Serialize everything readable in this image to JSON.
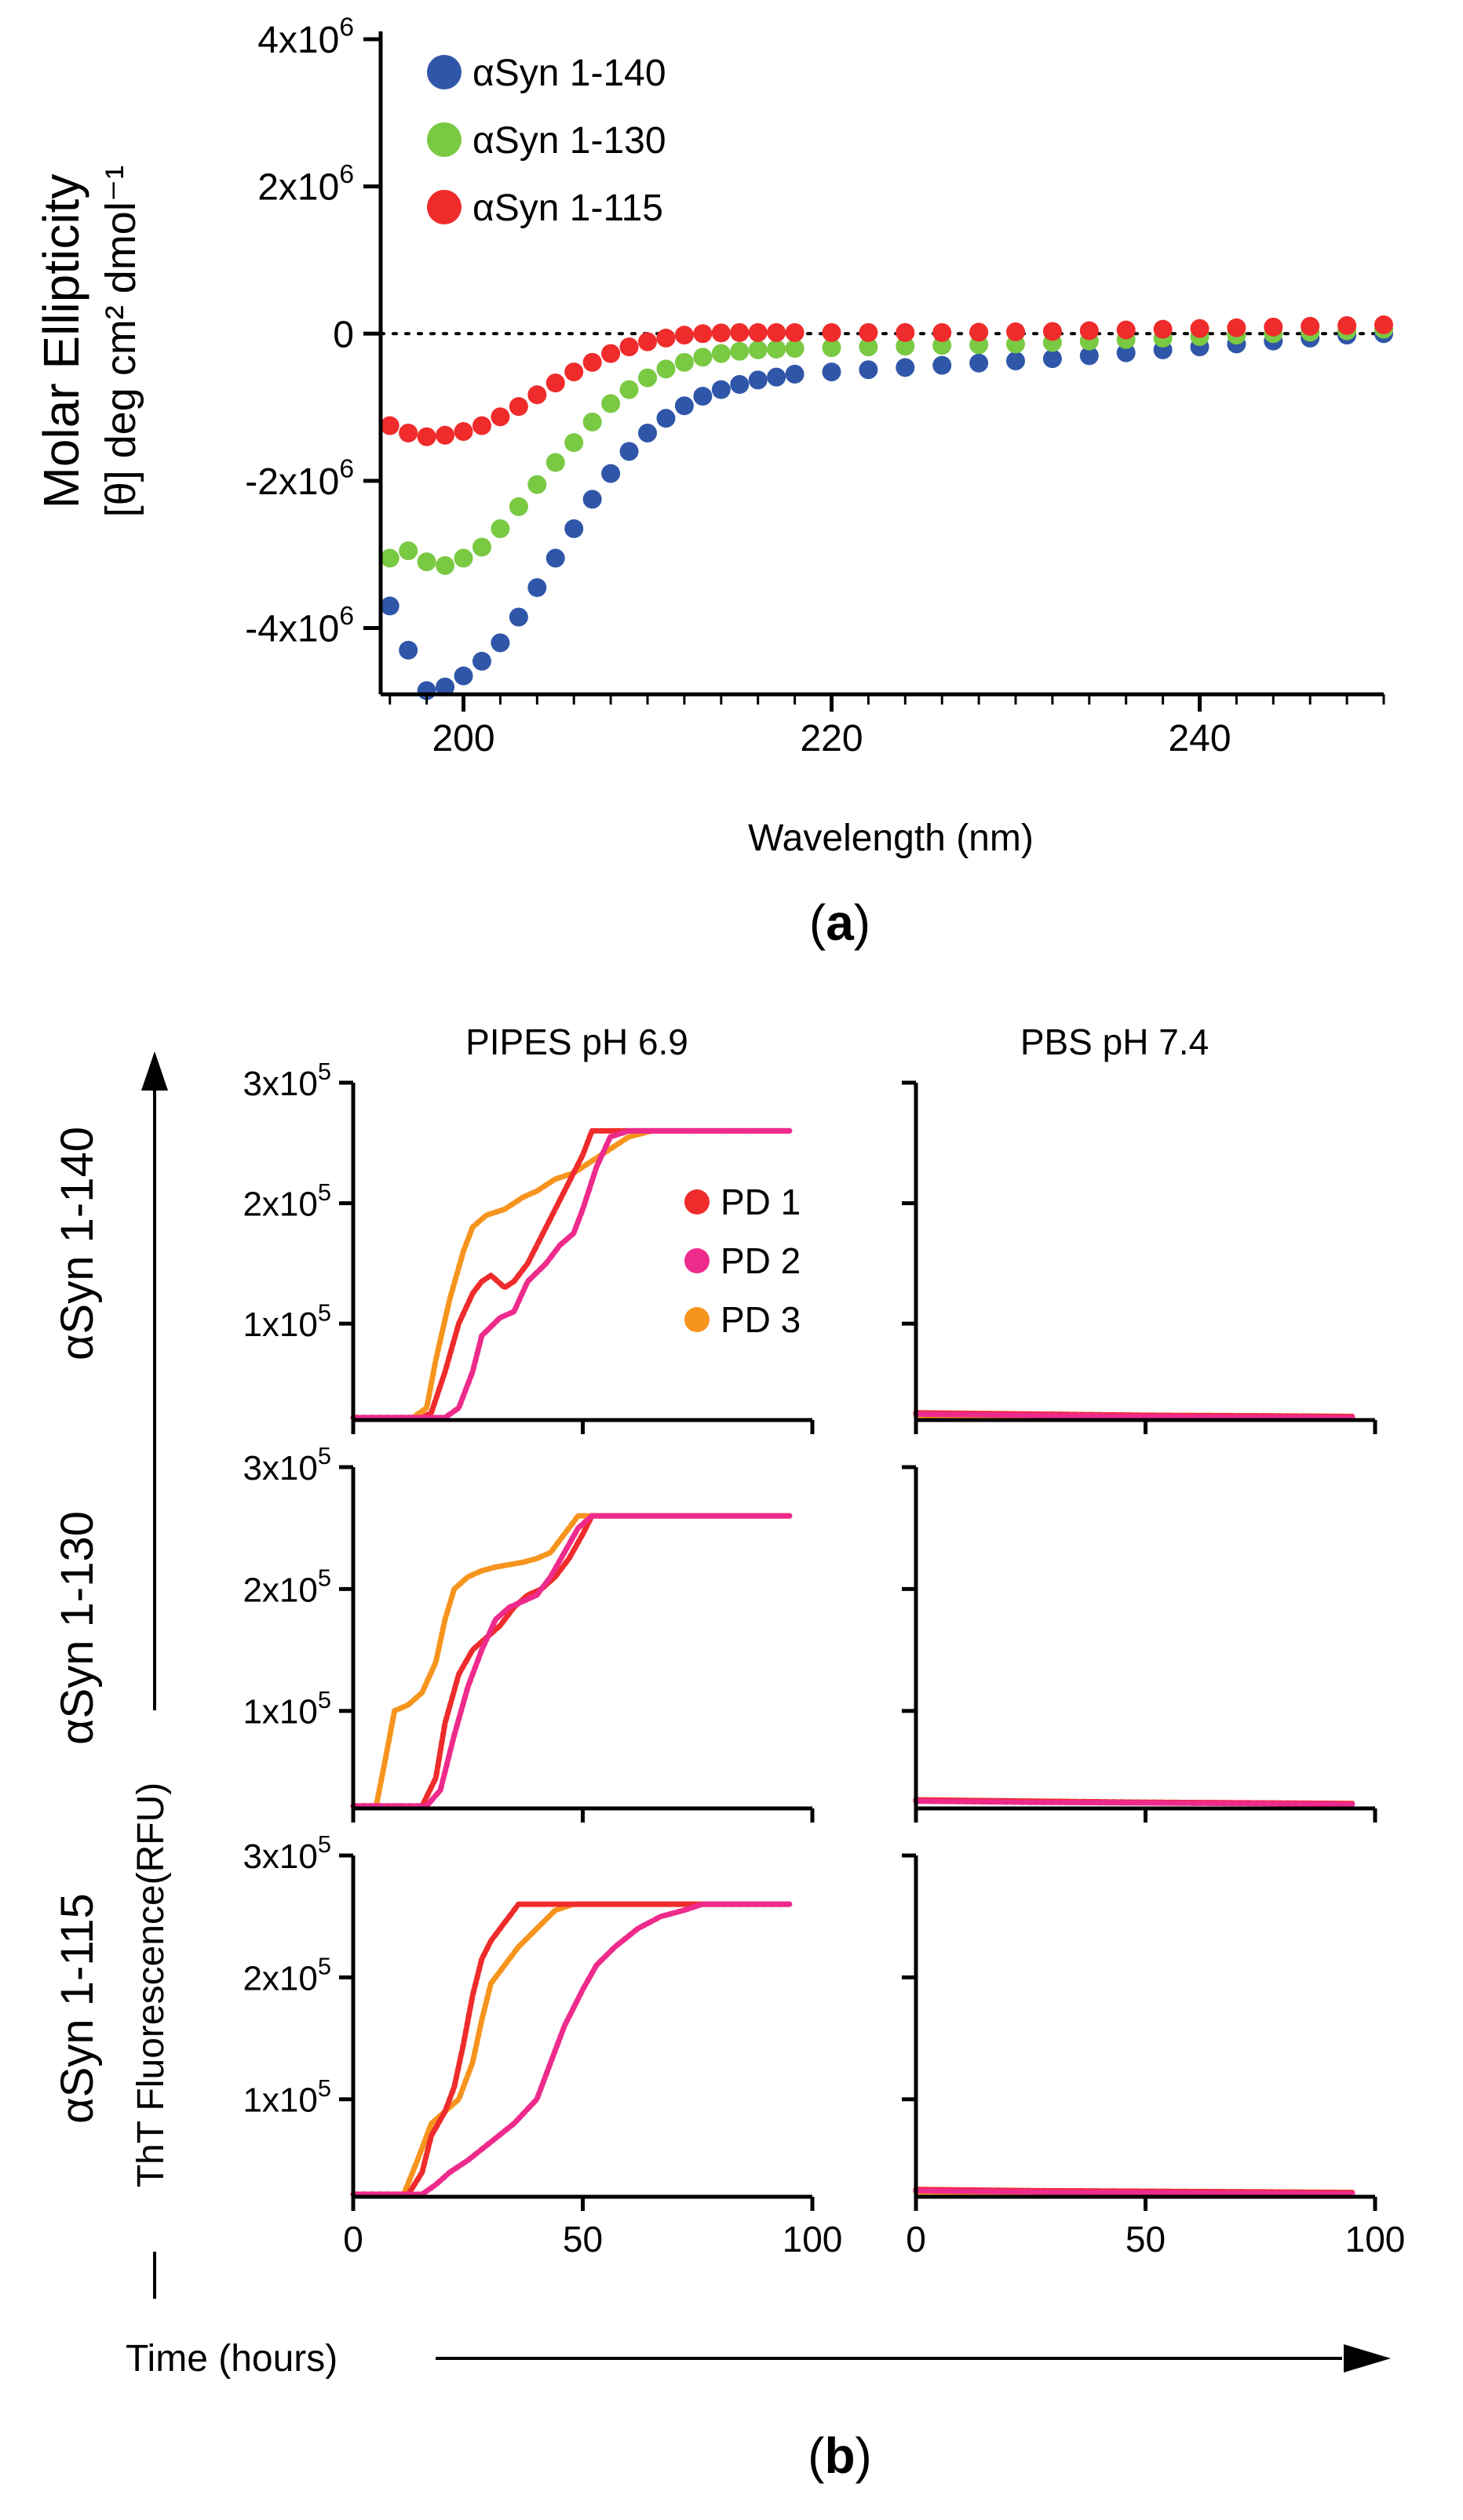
{
  "chart_data": [
    {
      "type": "scatter",
      "panel_label": "a",
      "title": "",
      "xlabel": "Wavelength (nm)",
      "ylabel_line1": "Molar Ellipticity",
      "ylabel_line2": "[θ] deg cm² dmol⁻¹",
      "xlim": [
        195.5,
        250
      ],
      "ylim": [
        -4900000.0,
        4000000.0
      ],
      "x_ticks": [
        200,
        220,
        240
      ],
      "x_tick_labels": [
        "200",
        "220",
        "240"
      ],
      "y_ticks": [
        4000000,
        2000000,
        0,
        -2000000,
        -4000000
      ],
      "y_tick_labels": [
        {
          "mant": "4x10",
          "exp": "6"
        },
        {
          "mant": "2x10",
          "exp": "6"
        },
        {
          "mant": "0",
          "exp": ""
        },
        {
          "mant": "-2x10",
          "exp": "6"
        },
        {
          "mant": "-4x10",
          "exp": "6"
        }
      ],
      "zero_line": "dotted",
      "legend_position": "top-left",
      "series": [
        {
          "name": "αSyn 1-140",
          "color": "#2f56a8",
          "x": [
            196,
            197,
            198,
            199,
            200,
            201,
            202,
            203,
            204,
            205,
            206,
            207,
            208,
            209,
            210,
            211,
            212,
            213,
            214,
            215,
            216,
            217,
            218,
            220,
            222,
            224,
            226,
            228,
            230,
            232,
            234,
            236,
            238,
            240,
            242,
            244,
            246,
            248,
            250
          ],
          "y": [
            -3700000,
            -4300000,
            -4850000,
            -4800000,
            -4650000,
            -4450000,
            -4200000,
            -3850000,
            -3450000,
            -3050000,
            -2650000,
            -2250000,
            -1900000,
            -1600000,
            -1350000,
            -1150000,
            -980000,
            -850000,
            -760000,
            -690000,
            -630000,
            -590000,
            -550000,
            -520000,
            -490000,
            -460000,
            -430000,
            -400000,
            -370000,
            -340000,
            -300000,
            -260000,
            -220000,
            -180000,
            -140000,
            -100000,
            -60000,
            -20000,
            0
          ]
        },
        {
          "name": "αSyn 1-130",
          "color": "#7ac943",
          "x": [
            196,
            197,
            198,
            199,
            200,
            201,
            202,
            203,
            204,
            205,
            206,
            207,
            208,
            209,
            210,
            211,
            212,
            213,
            214,
            215,
            216,
            217,
            218,
            220,
            222,
            224,
            226,
            228,
            230,
            232,
            234,
            236,
            238,
            240,
            242,
            244,
            246,
            248,
            250
          ],
          "y": [
            -3050000,
            -2950000,
            -3100000,
            -3150000,
            -3050000,
            -2900000,
            -2650000,
            -2350000,
            -2050000,
            -1750000,
            -1480000,
            -1200000,
            -950000,
            -760000,
            -600000,
            -480000,
            -390000,
            -320000,
            -270000,
            -240000,
            -220000,
            -210000,
            -200000,
            -190000,
            -180000,
            -170000,
            -160000,
            -150000,
            -140000,
            -120000,
            -100000,
            -80000,
            -60000,
            -40000,
            -20000,
            0,
            20000,
            40000,
            60000
          ]
        },
        {
          "name": "αSyn 1-115",
          "color": "#ef2b2b",
          "x": [
            196,
            197,
            198,
            199,
            200,
            201,
            202,
            203,
            204,
            205,
            206,
            207,
            208,
            209,
            210,
            211,
            212,
            213,
            214,
            215,
            216,
            217,
            218,
            220,
            222,
            224,
            226,
            228,
            230,
            232,
            234,
            236,
            238,
            240,
            242,
            244,
            246,
            248,
            250
          ],
          "y": [
            -1250000,
            -1350000,
            -1400000,
            -1380000,
            -1330000,
            -1250000,
            -1130000,
            -990000,
            -830000,
            -670000,
            -520000,
            -390000,
            -270000,
            -180000,
            -110000,
            -60000,
            -20000,
            0,
            10000,
            15000,
            15000,
            15000,
            15000,
            15000,
            15000,
            15000,
            15000,
            20000,
            25000,
            30000,
            40000,
            50000,
            60000,
            70000,
            80000,
            90000,
            100000,
            110000,
            120000
          ]
        }
      ]
    },
    {
      "type": "scatter",
      "panel_label": "b",
      "xlabel": "Time (hours)",
      "ylabel": "ThT Fluorescence(RFU)",
      "column_titles": [
        "PIPES pH 6.9",
        "PBS pH 7.4"
      ],
      "row_labels": [
        "αSyn 1-140",
        "αSyn 1-130",
        "αSyn 1-115"
      ],
      "xlim": [
        0,
        100
      ],
      "ylim": [
        20000,
        300000
      ],
      "x_ticks": [
        0,
        50,
        100
      ],
      "x_tick_labels": [
        "0",
        "50",
        "100"
      ],
      "y_ticks": [
        300000,
        200000,
        100000
      ],
      "y_tick_labels": [
        {
          "mant": "3x10",
          "exp": "5"
        },
        {
          "mant": "2x10",
          "exp": "5"
        },
        {
          "mant": "1x10",
          "exp": "5"
        }
      ],
      "legend_position": "top-right (row 1, PIPES)",
      "legend": [
        {
          "name": "PD 1",
          "color": "#ef2b2b"
        },
        {
          "name": "PD 2",
          "color": "#ee2a8c"
        },
        {
          "name": "PD 3",
          "color": "#f7941d"
        }
      ],
      "panels": [
        {
          "row": "αSyn 1-140",
          "column": "PIPES pH 6.9",
          "series": [
            {
              "name": "PD 1",
              "x": [
                0,
                15,
                17,
                20,
                23,
                26,
                28,
                30,
                33,
                35,
                38,
                42,
                46,
                50,
                52,
                70,
                95
              ],
              "y": [
                22000,
                22000,
                26000,
                60000,
                100000,
                125000,
                135000,
                140000,
                130000,
                135000,
                150000,
                180000,
                210000,
                240000,
                260000,
                260000,
                260000
              ]
            },
            {
              "name": "PD 2",
              "x": [
                0,
                20,
                23,
                26,
                28,
                32,
                35,
                38,
                42,
                45,
                48,
                50,
                53,
                56,
                60,
                70,
                95
              ],
              "y": [
                22000,
                22000,
                30000,
                60000,
                90000,
                105000,
                110000,
                135000,
                150000,
                165000,
                175000,
                195000,
                230000,
                255000,
                260000,
                260000,
                260000
              ]
            },
            {
              "name": "PD 3",
              "x": [
                0,
                13,
                16,
                18,
                21,
                24,
                26,
                29,
                33,
                37,
                40,
                44,
                48,
                52,
                56,
                60,
                65,
                70,
                95
              ],
              "y": [
                22000,
                22000,
                30000,
                70000,
                120000,
                160000,
                180000,
                190000,
                195000,
                205000,
                210000,
                220000,
                225000,
                235000,
                245000,
                255000,
                260000,
                260000,
                260000
              ]
            }
          ]
        },
        {
          "row": "αSyn 1-140",
          "column": "PBS pH 7.4",
          "series": [
            {
              "name": "PD 1",
              "x": [
                0,
                25,
                50,
                75,
                95
              ],
              "y": [
                26000,
                25000,
                24000,
                23500,
                23000
              ]
            },
            {
              "name": "PD 2",
              "x": [
                0,
                25,
                50,
                75,
                95
              ],
              "y": [
                25000,
                24000,
                23000,
                22500,
                22000
              ]
            },
            {
              "name": "PD 3",
              "x": [
                0,
                25,
                50,
                75,
                95
              ],
              "y": [
                24000,
                23500,
                23000,
                22500,
                22000
              ]
            }
          ]
        },
        {
          "row": "αSyn 1-130",
          "column": "PIPES pH 6.9",
          "series": [
            {
              "name": "PD 1",
              "x": [
                0,
                15,
                18,
                20,
                23,
                26,
                29,
                32,
                35,
                38,
                41,
                44,
                47,
                50,
                52,
                70,
                95
              ],
              "y": [
                22000,
                22000,
                45000,
                90000,
                130000,
                150000,
                160000,
                170000,
                185000,
                195000,
                200000,
                210000,
                225000,
                245000,
                260000,
                260000,
                260000
              ]
            },
            {
              "name": "PD 2",
              "x": [
                0,
                16,
                19,
                22,
                25,
                28,
                31,
                34,
                37,
                40,
                43,
                46,
                49,
                52,
                70,
                95
              ],
              "y": [
                22000,
                22000,
                35000,
                80000,
                120000,
                150000,
                175000,
                185000,
                190000,
                195000,
                210000,
                230000,
                250000,
                260000,
                260000,
                260000
              ]
            },
            {
              "name": "PD 3",
              "x": [
                0,
                5,
                7,
                9,
                12,
                15,
                18,
                20,
                22,
                25,
                28,
                31,
                34,
                37,
                40,
                43,
                46,
                49,
                70,
                95
              ],
              "y": [
                22000,
                22000,
                60000,
                100000,
                105000,
                115000,
                140000,
                175000,
                200000,
                210000,
                215000,
                218000,
                220000,
                222000,
                225000,
                230000,
                245000,
                260000,
                260000,
                260000
              ]
            }
          ]
        },
        {
          "row": "αSyn 1-130",
          "column": "PBS pH 7.4",
          "series": [
            {
              "name": "PD 1",
              "x": [
                0,
                25,
                50,
                75,
                95
              ],
              "y": [
                27000,
                26000,
                25000,
                24500,
                24000
              ]
            },
            {
              "name": "PD 2",
              "x": [
                0,
                25,
                50,
                75,
                95
              ],
              "y": [
                26000,
                25000,
                24500,
                24000,
                23500
              ]
            },
            {
              "name": "PD 3",
              "x": [
                0,
                25,
                50,
                75,
                95
              ],
              "y": [
                26000,
                25500,
                25000,
                24500,
                24000
              ]
            }
          ]
        },
        {
          "row": "αSyn 1-115",
          "column": "PIPES pH 6.9",
          "series": [
            {
              "name": "PD 1",
              "x": [
                0,
                12,
                15,
                17,
                20,
                22,
                24,
                26,
                28,
                30,
                32,
                34,
                36,
                40,
                70,
                95
              ],
              "y": [
                22000,
                22000,
                40000,
                70000,
                90000,
                110000,
                145000,
                185000,
                215000,
                230000,
                240000,
                250000,
                260000,
                260000,
                260000,
                260000
              ]
            },
            {
              "name": "PD 2",
              "x": [
                0,
                15,
                18,
                21,
                25,
                30,
                35,
                40,
                43,
                46,
                50,
                53,
                57,
                62,
                67,
                72,
                76,
                80,
                95
              ],
              "y": [
                22000,
                22000,
                30000,
                40000,
                50000,
                65000,
                80000,
                100000,
                130000,
                160000,
                190000,
                210000,
                225000,
                240000,
                250000,
                255000,
                260000,
                260000,
                260000
              ]
            },
            {
              "name": "PD 3",
              "x": [
                0,
                11,
                14,
                17,
                20,
                23,
                26,
                28,
                30,
                33,
                36,
                40,
                44,
                48,
                70,
                95
              ],
              "y": [
                22000,
                22000,
                50000,
                80000,
                90000,
                100000,
                130000,
                165000,
                195000,
                210000,
                225000,
                240000,
                255000,
                260000,
                260000,
                260000
              ]
            }
          ]
        },
        {
          "row": "αSyn 1-115",
          "column": "PBS pH 7.4",
          "series": [
            {
              "name": "PD 1",
              "x": [
                0,
                25,
                50,
                75,
                95
              ],
              "y": [
                26000,
                25000,
                24500,
                24000,
                23500
              ]
            },
            {
              "name": "PD 2",
              "x": [
                0,
                25,
                50,
                75,
                95
              ],
              "y": [
                25000,
                24000,
                23500,
                23000,
                22500
              ]
            },
            {
              "name": "PD 3",
              "x": [
                0,
                25,
                50,
                75,
                95
              ],
              "y": [
                24000,
                23500,
                23000,
                22500,
                22000
              ]
            }
          ]
        }
      ]
    }
  ]
}
